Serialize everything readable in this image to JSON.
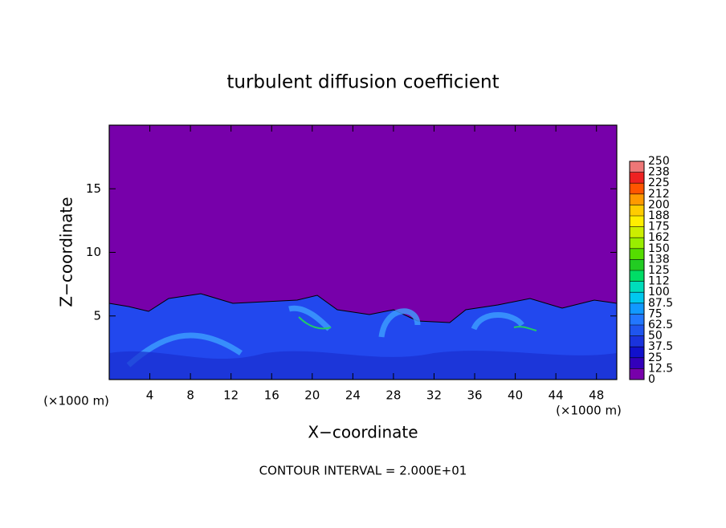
{
  "chart_data": {
    "type": "contour",
    "title": "turbulent diffusion coefficient",
    "xlabel": "X−coordinate",
    "ylabel": "Z−coordinate",
    "xunit": "(×1000 m)",
    "xunit2": "(×1000 m)",
    "footnote": "CONTOUR INTERVAL = 2.000E+01",
    "xlim": [
      0,
      50
    ],
    "ylim": [
      0,
      20
    ],
    "xticks": [
      4,
      8,
      12,
      16,
      20,
      24,
      28,
      32,
      36,
      40,
      44,
      48
    ],
    "yticks": [
      5,
      10,
      15
    ],
    "colorbar": {
      "levels": [
        0,
        12.5,
        25,
        37.5,
        50,
        62.5,
        75,
        87.5,
        100,
        112,
        125,
        138,
        150,
        162,
        175,
        188,
        200,
        212,
        225,
        238,
        250
      ],
      "colors": [
        "#7700aa",
        "#3300bb",
        "#1111cc",
        "#1a33dd",
        "#1f55ee",
        "#2277ff",
        "#1199ff",
        "#00c8ee",
        "#00ddbb",
        "#00dd66",
        "#22cc22",
        "#55dd00",
        "#99ee00",
        "#ccee00",
        "#ffee00",
        "#ffcc00",
        "#ff9900",
        "#ff5500",
        "#ee2222",
        "#ee7777"
      ]
    }
  }
}
